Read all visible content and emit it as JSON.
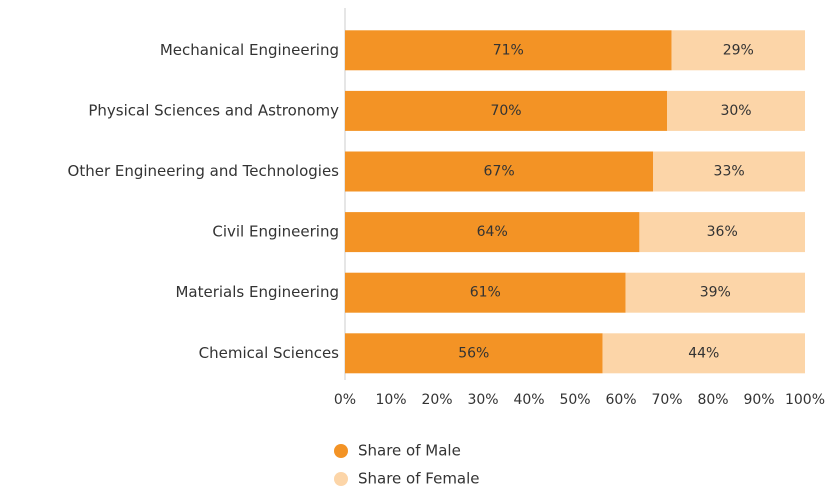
{
  "chart_data": {
    "type": "stacked-bar-horizontal",
    "categories": [
      "Mechanical Engineering",
      "Physical Sciences and Astronomy",
      "Other Engineering and Technologies",
      "Civil Engineering",
      "Materials Engineering",
      "Chemical Sciences"
    ],
    "series": [
      {
        "name": "Share of Male",
        "color": "#f39325",
        "values": [
          71,
          70,
          67,
          64,
          61,
          56
        ],
        "value_labels": [
          "71%",
          "70%",
          "67%",
          "64%",
          "61%",
          "56%"
        ]
      },
      {
        "name": "Share of Female",
        "color": "#fcd5a8",
        "values": [
          29,
          30,
          33,
          36,
          39,
          44
        ],
        "value_labels": [
          "29%",
          "30%",
          "33%",
          "36%",
          "39%",
          "44%"
        ]
      }
    ],
    "xlim": [
      0,
      100
    ],
    "xticks": [
      {
        "value": 0,
        "label": "0%"
      },
      {
        "value": 10,
        "label": "10%"
      },
      {
        "value": 20,
        "label": "20%"
      },
      {
        "value": 30,
        "label": "30%"
      },
      {
        "value": 40,
        "label": "40%"
      },
      {
        "value": 50,
        "label": "50%"
      },
      {
        "value": 60,
        "label": "60%"
      },
      {
        "value": 70,
        "label": "70%"
      },
      {
        "value": 80,
        "label": "80%"
      },
      {
        "value": 90,
        "label": "90%"
      },
      {
        "value": 100,
        "label": "100%"
      }
    ],
    "legend": "bottom"
  }
}
